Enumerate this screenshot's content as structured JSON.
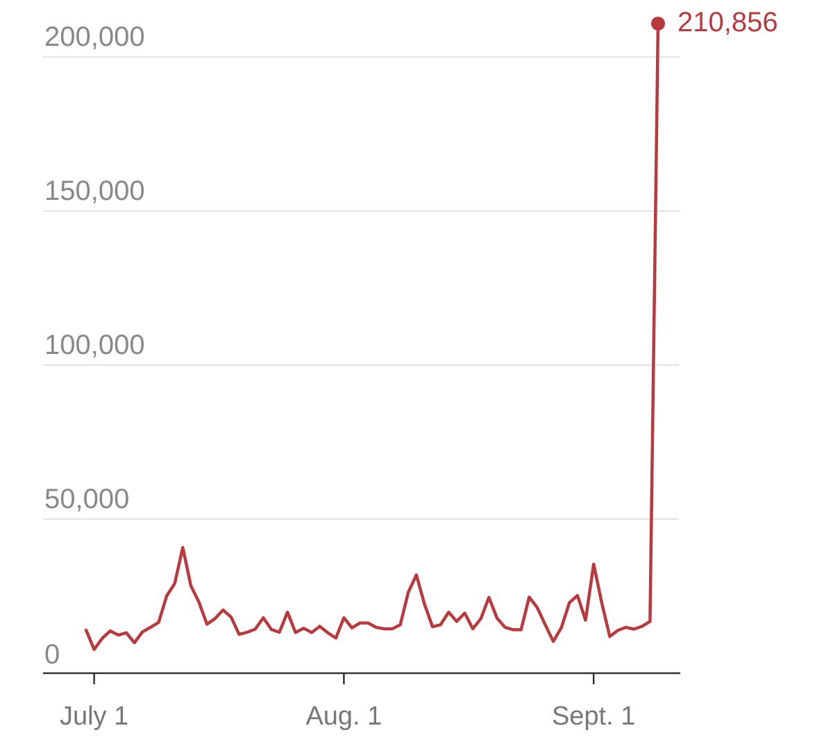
{
  "chart_data": {
    "type": "line",
    "title": "",
    "xlabel": "",
    "ylabel": "",
    "ylim": [
      0,
      210856
    ],
    "grid": true,
    "legend": "none",
    "line_color": "#b83a3f",
    "x": [
      "2021-06-30",
      "2021-07-01",
      "2021-07-02",
      "2021-07-03",
      "2021-07-04",
      "2021-07-05",
      "2021-07-06",
      "2021-07-07",
      "2021-07-08",
      "2021-07-09",
      "2021-07-10",
      "2021-07-11",
      "2021-07-12",
      "2021-07-13",
      "2021-07-14",
      "2021-07-15",
      "2021-07-16",
      "2021-07-17",
      "2021-07-18",
      "2021-07-19",
      "2021-07-20",
      "2021-07-21",
      "2021-07-22",
      "2021-07-23",
      "2021-07-24",
      "2021-07-25",
      "2021-07-26",
      "2021-07-27",
      "2021-07-28",
      "2021-07-29",
      "2021-07-30",
      "2021-07-31",
      "2021-08-01",
      "2021-08-02",
      "2021-08-03",
      "2021-08-04",
      "2021-08-05",
      "2021-08-06",
      "2021-08-07",
      "2021-08-08",
      "2021-08-09",
      "2021-08-10",
      "2021-08-11",
      "2021-08-12",
      "2021-08-13",
      "2021-08-14",
      "2021-08-15",
      "2021-08-16",
      "2021-08-17",
      "2021-08-18",
      "2021-08-19",
      "2021-08-20",
      "2021-08-21",
      "2021-08-22",
      "2021-08-23",
      "2021-08-24",
      "2021-08-25",
      "2021-08-26",
      "2021-08-27",
      "2021-08-28",
      "2021-08-29",
      "2021-08-30",
      "2021-08-31",
      "2021-09-01",
      "2021-09-02",
      "2021-09-03",
      "2021-09-04",
      "2021-09-05",
      "2021-09-06",
      "2021-09-07",
      "2021-09-08",
      "2021-09-09"
    ],
    "series": [
      {
        "values": [
          14000,
          7700,
          11300,
          13700,
          12400,
          13100,
          9900,
          13400,
          14900,
          16500,
          25100,
          29100,
          40800,
          28400,
          23100,
          15900,
          17700,
          20500,
          18200,
          12600,
          13300,
          14300,
          18000,
          14200,
          13300,
          19800,
          13200,
          14600,
          13200,
          15200,
          13100,
          11400,
          18000,
          14700,
          16300,
          16300,
          14900,
          14400,
          14400,
          15700,
          26300,
          31900,
          22500,
          15100,
          15700,
          19800,
          16800,
          19500,
          14400,
          17700,
          24600,
          17900,
          14900,
          14100,
          14100,
          24700,
          21300,
          15700,
          10300,
          14800,
          22900,
          25200,
          17200,
          35400,
          22900,
          11900,
          13900,
          14900,
          14300,
          15200,
          16800,
          210856
        ]
      }
    ],
    "y_ticks": [
      {
        "value": 0,
        "label": "0"
      },
      {
        "value": 50000,
        "label": "50,000"
      },
      {
        "value": 100000,
        "label": "100,000"
      },
      {
        "value": 150000,
        "label": "150,000"
      },
      {
        "value": 200000,
        "label": "200,000"
      }
    ],
    "x_ticks": [
      {
        "date": "2021-07-01",
        "label": "July 1"
      },
      {
        "date": "2021-08-01",
        "label": "Aug. 1"
      },
      {
        "date": "2021-09-01",
        "label": "Sept. 1"
      }
    ],
    "end_label": "210,856"
  }
}
